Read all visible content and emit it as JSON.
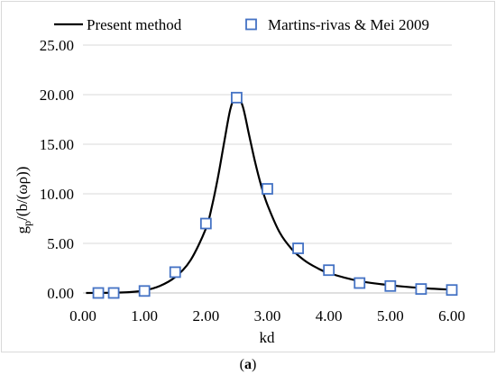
{
  "chart_data": {
    "type": "line",
    "xlabel": "kd",
    "ylabel_main": "g",
    "ylabel_sub": "p",
    "ylabel_rest": "/(b/(ωρ))",
    "xlim": [
      0,
      6
    ],
    "ylim": [
      0,
      25
    ],
    "x_ticks": [
      "0.00",
      "1.00",
      "2.00",
      "3.00",
      "4.00",
      "5.00",
      "6.00"
    ],
    "y_ticks": [
      "0.00",
      "5.00",
      "10.00",
      "15.00",
      "20.00",
      "25.00"
    ],
    "grid": "horizontal",
    "legend_position": "top",
    "series": [
      {
        "name": "Present method",
        "style": "line",
        "color": "#000000",
        "x": [
          0.05,
          0.25,
          0.5,
          0.75,
          1.0,
          1.25,
          1.5,
          1.75,
          2.0,
          2.1,
          2.2,
          2.3,
          2.4,
          2.5,
          2.6,
          2.7,
          2.8,
          2.9,
          3.0,
          3.2,
          3.4,
          3.6,
          3.8,
          4.0,
          4.5,
          5.0,
          5.5,
          6.0
        ],
        "y": [
          0.0,
          0.01,
          0.03,
          0.08,
          0.25,
          0.7,
          1.6,
          3.3,
          6.5,
          8.8,
          11.8,
          15.3,
          18.6,
          20.0,
          18.8,
          16.0,
          13.2,
          10.8,
          8.9,
          6.1,
          4.4,
          3.3,
          2.55,
          2.0,
          1.2,
          0.78,
          0.5,
          0.33
        ]
      },
      {
        "name": "Martins-rivas & Mei 2009",
        "style": "marker",
        "color": "#4472c4",
        "x": [
          0.25,
          0.5,
          1.0,
          1.5,
          2.0,
          2.5,
          3.0,
          3.5,
          4.0,
          4.5,
          5.0,
          5.5,
          6.0
        ],
        "y": [
          0.0,
          0.0,
          0.2,
          2.1,
          7.0,
          19.7,
          10.5,
          4.5,
          2.3,
          1.0,
          0.7,
          0.4,
          0.3
        ]
      }
    ]
  },
  "caption": {
    "open": "(",
    "letter": "a",
    "close": ")"
  }
}
